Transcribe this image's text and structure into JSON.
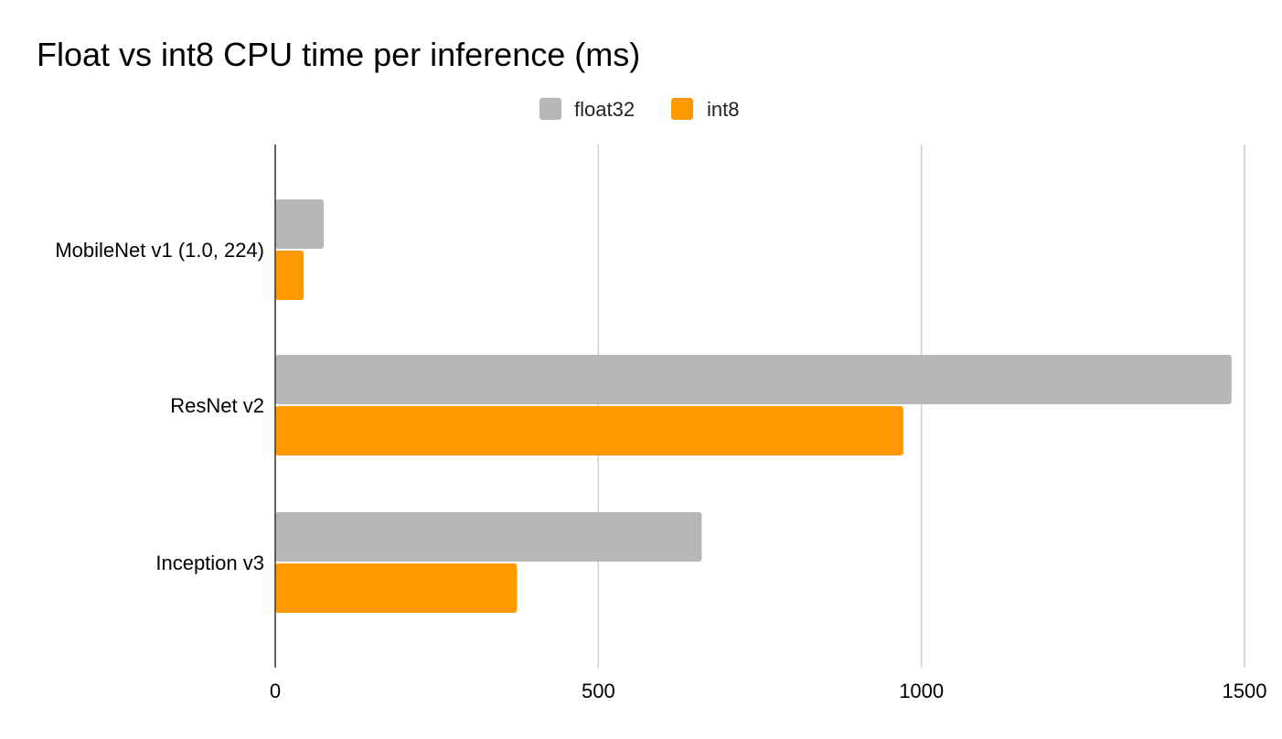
{
  "chart_data": {
    "type": "bar",
    "orientation": "horizontal",
    "title": "Float vs int8 CPU time per inference (ms)",
    "xlabel": "",
    "ylabel": "",
    "categories": [
      "MobileNet v1 (1.0, 224)",
      "ResNet v2",
      "Inception v3"
    ],
    "series": [
      {
        "name": "float32",
        "color": "#b7b7b7",
        "values": [
          75,
          1480,
          660
        ]
      },
      {
        "name": "int8",
        "color": "#ff9900",
        "values": [
          44,
          972,
          374
        ]
      }
    ],
    "xlim": [
      0,
      1500
    ],
    "xticks": [
      0,
      500,
      1000,
      1500
    ],
    "grid": true,
    "legend_position": "top-center"
  }
}
